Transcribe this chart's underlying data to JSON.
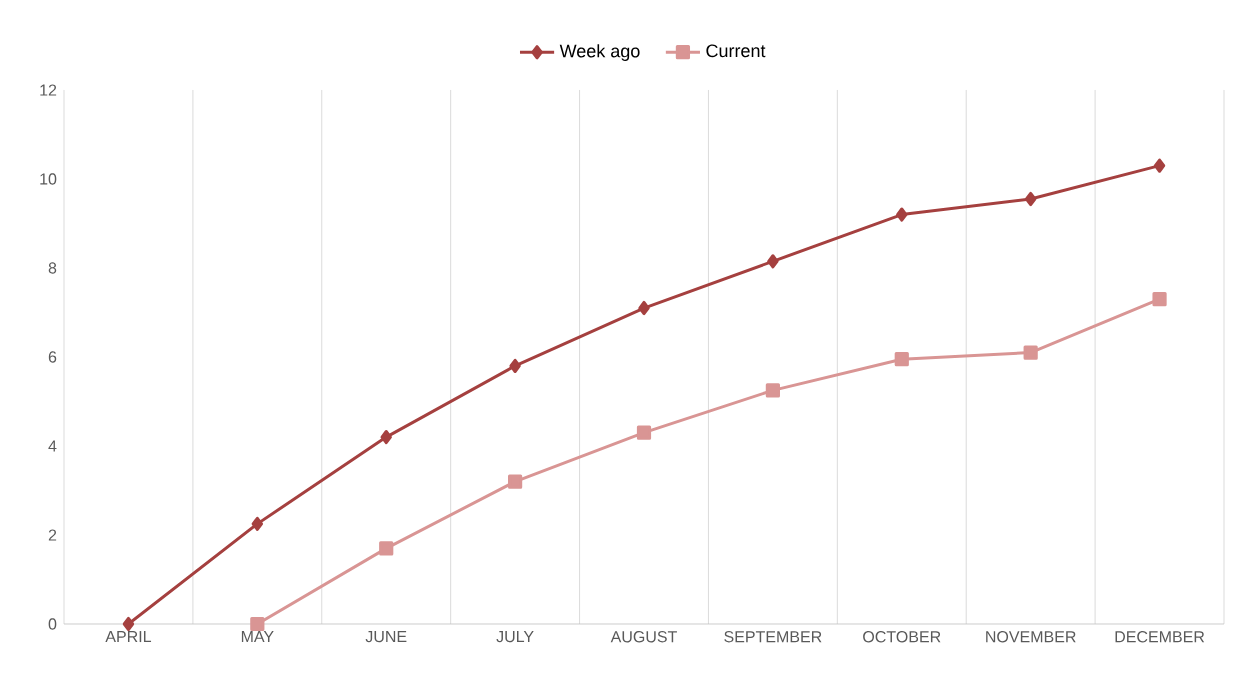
{
  "chart_data": {
    "type": "line",
    "categories": [
      "APRIL",
      "MAY",
      "JUNE",
      "JULY",
      "AUGUST",
      "SEPTEMBER",
      "OCTOBER",
      "NOVEMBER",
      "DECEMBER"
    ],
    "series": [
      {
        "name": "Week ago",
        "color": "#a5403f",
        "marker": "diamond",
        "values": [
          0,
          2.25,
          4.2,
          5.8,
          7.1,
          8.15,
          9.2,
          9.55,
          10.3
        ]
      },
      {
        "name": "Current",
        "color": "#d99594",
        "marker": "square",
        "values": [
          null,
          0,
          1.7,
          3.2,
          4.3,
          5.25,
          5.95,
          6.1,
          7.3
        ]
      }
    ],
    "ylim": [
      0,
      12
    ],
    "yticks": [
      0,
      2,
      4,
      6,
      8,
      10,
      12
    ],
    "grid": "x",
    "legend": "top"
  }
}
